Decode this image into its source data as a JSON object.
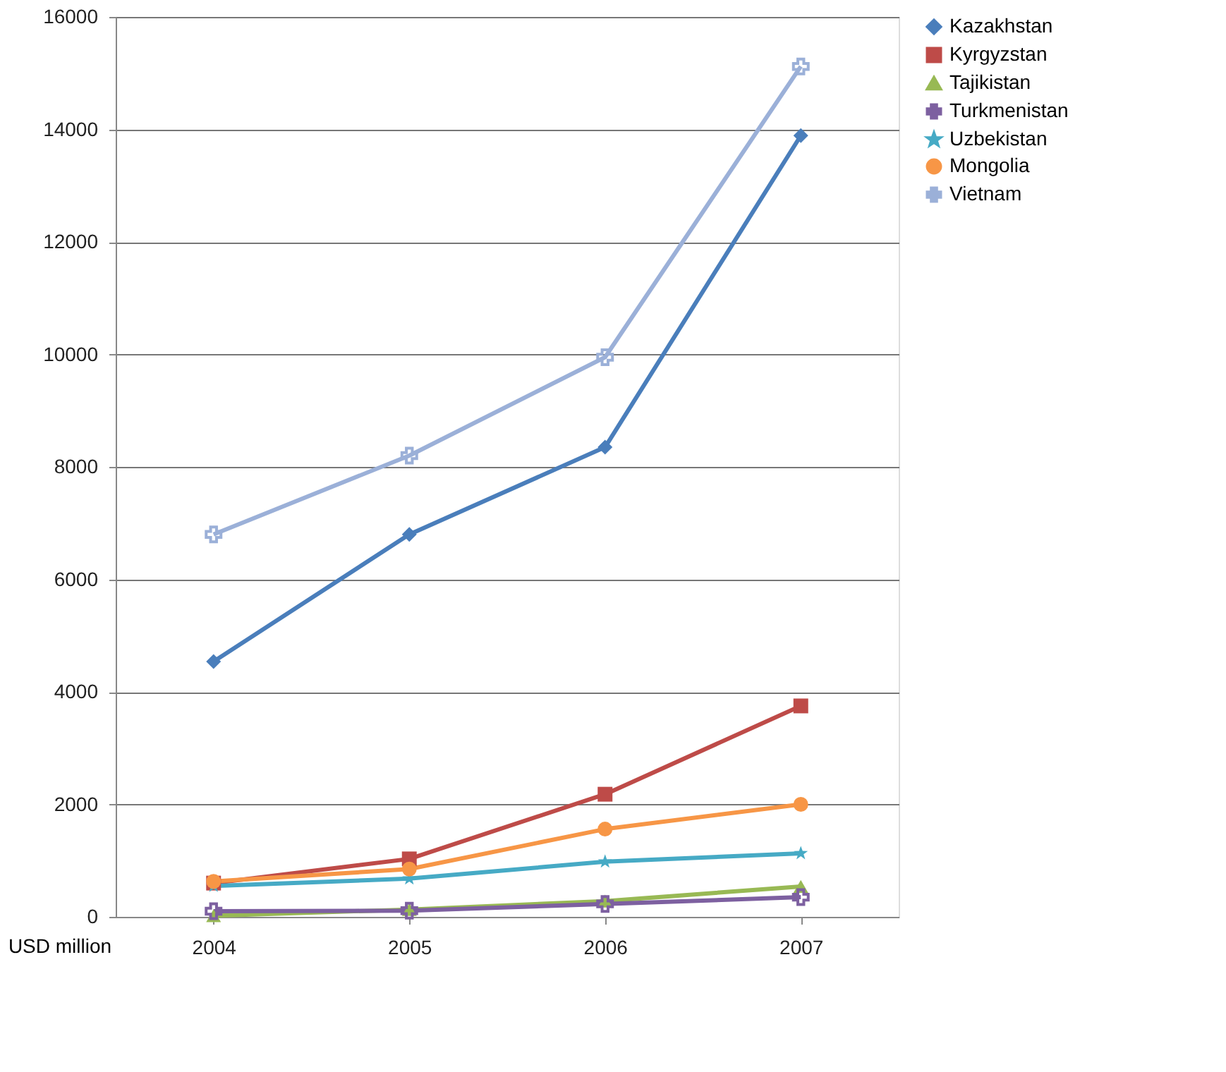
{
  "chart_data": {
    "type": "line",
    "ylabel": "USD million",
    "categories": [
      "2004",
      "2005",
      "2006",
      "2007"
    ],
    "series": [
      {
        "name": "Kazakhstan",
        "color": "#4a7ebb",
        "marker": "diamond",
        "values": [
          4540,
          6800,
          8350,
          13890
        ]
      },
      {
        "name": "Kyrgyzstan",
        "color": "#be4b48",
        "marker": "square",
        "values": [
          600,
          1030,
          2180,
          3750
        ]
      },
      {
        "name": "Tajikistan",
        "color": "#98b954",
        "marker": "triangle",
        "values": [
          20,
          130,
          280,
          540
        ]
      },
      {
        "name": "Turkmenistan",
        "color": "#7d60a0",
        "marker": "cross",
        "values": [
          100,
          110,
          230,
          350
        ]
      },
      {
        "name": "Uzbekistan",
        "color": "#46aac5",
        "marker": "star",
        "values": [
          550,
          680,
          980,
          1130
        ]
      },
      {
        "name": "Mongolia",
        "color": "#f79646",
        "marker": "circle",
        "values": [
          630,
          850,
          1560,
          2000
        ]
      },
      {
        "name": "Vietnam",
        "color": "#9bb0d8",
        "marker": "cross",
        "values": [
          6800,
          8200,
          9950,
          15120
        ]
      }
    ],
    "ylim": [
      0,
      16000
    ],
    "yticks": [
      0,
      2000,
      4000,
      6000,
      8000,
      10000,
      12000,
      14000,
      16000
    ],
    "grid": "y",
    "legend": "right",
    "line_style": "solid"
  }
}
